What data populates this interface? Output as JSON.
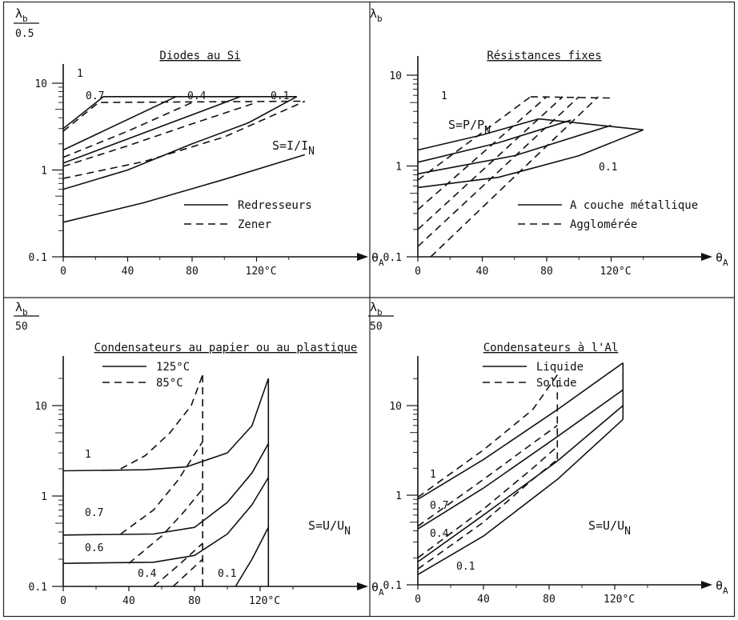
{
  "figure": {
    "chart_data": [
      {
        "type": "line",
        "title": "Diodes au Si",
        "ylabel": "λb / 0.5",
        "xlabel": "θA",
        "xlim": [
          0,
          150
        ],
        "ylim": [
          0.1,
          10
        ],
        "yscale": "log",
        "x_ticks": [
          "0",
          "40",
          "80",
          "120°C"
        ],
        "y_ticks": [
          "0.1",
          "1",
          "10"
        ],
        "legend": [
          {
            "label": "Redresseurs",
            "style": "solid"
          },
          {
            "label": "Zener",
            "style": "dashed"
          }
        ],
        "legend_position": "bottom-right",
        "param_label": "S=I/IN",
        "curve_labels": [
          "1",
          "0.7",
          "0.4",
          "0.1"
        ],
        "series": [
          {
            "style": "solid",
            "points": [
              [
                0,
                3.0
              ],
              [
                25,
                7.0
              ],
              [
                145,
                7.0
              ]
            ]
          },
          {
            "style": "solid",
            "points": [
              [
                0,
                1.7
              ],
              [
                70,
                7.0
              ]
            ]
          },
          {
            "style": "solid",
            "points": [
              [
                0,
                1.2
              ],
              [
                110,
                7.0
              ]
            ]
          },
          {
            "style": "solid",
            "points": [
              [
                0,
                0.6
              ],
              [
                40,
                1.0
              ],
              [
                80,
                2.0
              ],
              [
                115,
                3.5
              ],
              [
                145,
                7.0
              ]
            ]
          },
          {
            "style": "solid",
            "points": [
              [
                0,
                0.25
              ],
              [
                50,
                0.42
              ],
              [
                100,
                0.78
              ],
              [
                150,
                1.5
              ]
            ]
          },
          {
            "style": "dashed",
            "points": [
              [
                0,
                2.8
              ],
              [
                22,
                6.0
              ],
              [
                150,
                6.2
              ]
            ]
          },
          {
            "style": "dashed",
            "points": [
              [
                0,
                1.4
              ],
              [
                40,
                2.8
              ],
              [
                80,
                6.0
              ]
            ]
          },
          {
            "style": "dashed",
            "points": [
              [
                0,
                1.1
              ],
              [
                40,
                1.9
              ],
              [
                80,
                3.4
              ],
              [
                120,
                6.0
              ]
            ]
          },
          {
            "style": "dashed",
            "points": [
              [
                0,
                0.8
              ],
              [
                50,
                1.25
              ],
              [
                100,
                2.4
              ],
              [
                150,
                6.2
              ]
            ]
          }
        ]
      },
      {
        "type": "line",
        "title": "Résistances fixes",
        "ylabel": "λb",
        "xlabel": "θA",
        "xlim": [
          0,
          150
        ],
        "ylim": [
          0.1,
          10
        ],
        "yscale": "log",
        "x_ticks": [
          "0",
          "40",
          "80",
          "120°C"
        ],
        "y_ticks": [
          "0.1",
          "1",
          "10"
        ],
        "legend": [
          {
            "label": "A couche métallique",
            "style": "solid"
          },
          {
            "label": "Agglomérée",
            "style": "dashed"
          }
        ],
        "legend_position": "bottom-right",
        "param_label": "S=P/PN",
        "curve_labels": [
          "1",
          "0.1"
        ],
        "series": [
          {
            "style": "solid",
            "points": [
              [
                0,
                1.5
              ],
              [
                40,
                2.2
              ],
              [
                75,
                3.3
              ]
            ]
          },
          {
            "style": "solid",
            "points": [
              [
                0,
                1.1
              ],
              [
                50,
                1.8
              ],
              [
                95,
                3.2
              ]
            ]
          },
          {
            "style": "solid",
            "points": [
              [
                0,
                0.82
              ],
              [
                60,
                1.3
              ],
              [
                120,
                2.8
              ]
            ]
          },
          {
            "style": "solid",
            "points": [
              [
                0,
                0.58
              ],
              [
                50,
                0.75
              ],
              [
                100,
                1.3
              ],
              [
                140,
                2.5
              ]
            ]
          },
          {
            "style": "solid",
            "points": [
              [
                75,
                3.3
              ],
              [
                140,
                2.5
              ]
            ]
          },
          {
            "style": "dashed",
            "points": [
              [
                0,
                0.7
              ],
              [
                70,
                5.8
              ]
            ]
          },
          {
            "style": "dashed",
            "points": [
              [
                0,
                0.33
              ],
              [
                80,
                5.8
              ]
            ]
          },
          {
            "style": "dashed",
            "points": [
              [
                0,
                0.2
              ],
              [
                90,
                5.8
              ]
            ]
          },
          {
            "style": "dashed",
            "points": [
              [
                0,
                0.13
              ],
              [
                100,
                5.8
              ]
            ]
          },
          {
            "style": "dashed",
            "points": [
              [
                8,
                0.1
              ],
              [
                112,
                5.8
              ]
            ]
          },
          {
            "style": "dashed",
            "points": [
              [
                70,
                5.8
              ],
              [
                122,
                5.6
              ]
            ]
          }
        ]
      },
      {
        "type": "line",
        "title": "Condensateurs au papier ou au plastique",
        "ylabel": "λb / 50",
        "xlabel": "θA",
        "xlim": [
          0,
          150
        ],
        "ylim": [
          0.1,
          30
        ],
        "yscale": "log",
        "x_ticks": [
          "0",
          "40",
          "80",
          "120°C"
        ],
        "y_ticks": [
          "0.1",
          "1",
          "10"
        ],
        "legend": [
          {
            "label": "125°C",
            "style": "solid"
          },
          {
            "label": "85°C",
            "style": "dashed"
          }
        ],
        "legend_position": "top-left",
        "param_label": "S=U/UN",
        "curve_labels": [
          "1",
          "0.7",
          "0.6",
          "0.4",
          "0.1"
        ],
        "series": [
          {
            "style": "solid",
            "points": [
              [
                0,
                1.9
              ],
              [
                50,
                1.95
              ],
              [
                75,
                2.1
              ],
              [
                100,
                3.0
              ],
              [
                115,
                6.0
              ],
              [
                125,
                20.0
              ]
            ]
          },
          {
            "style": "solid",
            "points": [
              [
                0,
                0.37
              ],
              [
                55,
                0.38
              ],
              [
                80,
                0.45
              ],
              [
                100,
                0.85
              ],
              [
                115,
                1.8
              ],
              [
                125,
                3.8
              ]
            ]
          },
          {
            "style": "solid",
            "points": [
              [
                0,
                0.18
              ],
              [
                55,
                0.185
              ],
              [
                80,
                0.22
              ],
              [
                100,
                0.38
              ],
              [
                115,
                0.8
              ],
              [
                125,
                1.6
              ]
            ]
          },
          {
            "style": "solid",
            "points": [
              [
                105,
                0.1
              ],
              [
                115,
                0.2
              ],
              [
                125,
                0.45
              ]
            ]
          },
          {
            "style": "solid",
            "points": [
              [
                125,
                0.1
              ],
              [
                125,
                20.0
              ]
            ]
          },
          {
            "style": "dashed",
            "points": [
              [
                35,
                2.0
              ],
              [
                50,
                2.8
              ],
              [
                65,
                5.0
              ],
              [
                78,
                10.0
              ],
              [
                85,
                22.0
              ]
            ]
          },
          {
            "style": "dashed",
            "points": [
              [
                35,
                0.38
              ],
              [
                55,
                0.7
              ],
              [
                70,
                1.5
              ],
              [
                85,
                4.0
              ]
            ]
          },
          {
            "style": "dashed",
            "points": [
              [
                40,
                0.18
              ],
              [
                60,
                0.36
              ],
              [
                73,
                0.65
              ],
              [
                85,
                1.2
              ]
            ]
          },
          {
            "style": "dashed",
            "points": [
              [
                55,
                0.1
              ],
              [
                70,
                0.17
              ],
              [
                85,
                0.3
              ]
            ]
          },
          {
            "style": "dashed",
            "points": [
              [
                67,
                0.1
              ],
              [
                85,
                0.2
              ]
            ]
          },
          {
            "style": "dashed",
            "points": [
              [
                85,
                0.1
              ],
              [
                85,
                22.0
              ]
            ]
          }
        ]
      },
      {
        "type": "line",
        "title": "Condensateurs à l'Al",
        "ylabel": "λb / 50",
        "xlabel": "θA",
        "xlim": [
          0,
          150
        ],
        "ylim": [
          0.1,
          30
        ],
        "yscale": "log",
        "x_ticks": [
          "0",
          "40",
          "80",
          "120°C"
        ],
        "y_ticks": [
          "0.1",
          "1",
          "10"
        ],
        "legend": [
          {
            "label": "Liquide",
            "style": "solid"
          },
          {
            "label": "Solide",
            "style": "dashed"
          }
        ],
        "legend_position": "top-left",
        "param_label": "S=U/UN",
        "curve_labels": [
          "1",
          "0.7",
          "0.4",
          "0.1"
        ],
        "series": [
          {
            "style": "solid",
            "points": [
              [
                0,
                0.9
              ],
              [
                40,
                2.5
              ],
              [
                85,
                9.0
              ],
              [
                125,
                30.0
              ]
            ]
          },
          {
            "style": "solid",
            "points": [
              [
                0,
                0.42
              ],
              [
                40,
                1.2
              ],
              [
                85,
                4.5
              ],
              [
                125,
                15.0
              ]
            ]
          },
          {
            "style": "solid",
            "points": [
              [
                0,
                0.18
              ],
              [
                40,
                0.6
              ],
              [
                85,
                2.4
              ],
              [
                125,
                10.0
              ]
            ]
          },
          {
            "style": "solid",
            "points": [
              [
                0,
                0.13
              ],
              [
                40,
                0.35
              ],
              [
                85,
                1.5
              ],
              [
                125,
                7.0
              ]
            ]
          },
          {
            "style": "solid",
            "points": [
              [
                125,
                7.0
              ],
              [
                125,
                30.0
              ]
            ]
          },
          {
            "style": "dashed",
            "points": [
              [
                0,
                0.95
              ],
              [
                40,
                3.2
              ],
              [
                70,
                9.0
              ],
              [
                85,
                22.0
              ]
            ]
          },
          {
            "style": "dashed",
            "points": [
              [
                0,
                0.45
              ],
              [
                40,
                1.5
              ],
              [
                70,
                3.8
              ],
              [
                85,
                6.0
              ]
            ]
          },
          {
            "style": "dashed",
            "points": [
              [
                0,
                0.2
              ],
              [
                40,
                0.7
              ],
              [
                70,
                2.0
              ],
              [
                85,
                3.5
              ]
            ]
          },
          {
            "style": "dashed",
            "points": [
              [
                0,
                0.15
              ],
              [
                40,
                0.5
              ],
              [
                70,
                1.5
              ],
              [
                85,
                2.5
              ]
            ]
          },
          {
            "style": "dashed",
            "points": [
              [
                85,
                2.5
              ],
              [
                85,
                22.0
              ]
            ]
          }
        ]
      }
    ]
  }
}
